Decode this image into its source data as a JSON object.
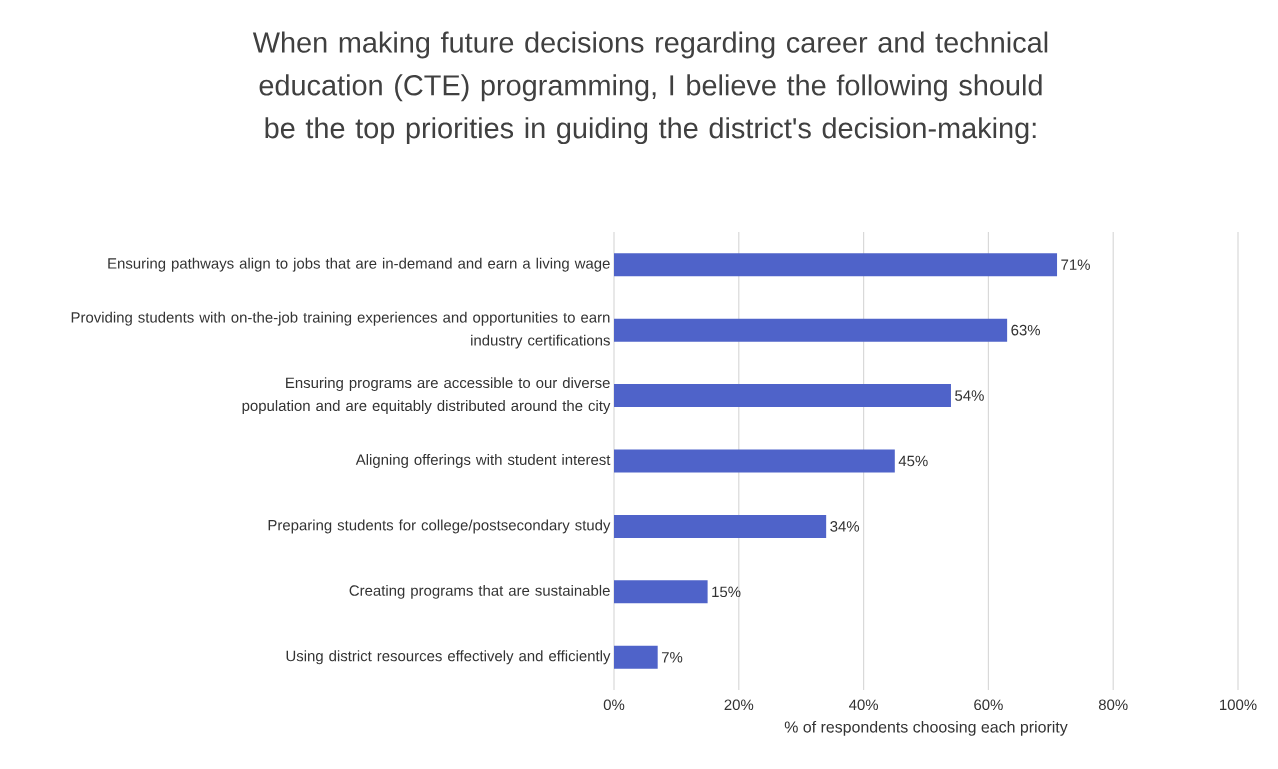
{
  "chart_data": {
    "type": "bar",
    "orientation": "horizontal",
    "title": "When making future decisions regarding career and technical education (CTE) programming, I believe the following should be the top priorities in guiding the district's decision-making:",
    "xlabel": "% of respondents choosing each priority",
    "categories": [
      "Ensuring pathways align to jobs that are in-demand and earn a living wage",
      "Providing students with on-the-job training experiences and opportunities to earn industry certifications",
      "Ensuring programs are accessible to our diverse population and are equitably distributed around the city",
      "Aligning offerings with student interest",
      "Preparing students for college/postsecondary study",
      "Creating programs that are sustainable",
      "Using district resources effectively and efficiently"
    ],
    "values": [
      71,
      63,
      54,
      45,
      34,
      15,
      7
    ],
    "value_labels": [
      "71%",
      "63%",
      "54%",
      "45%",
      "34%",
      "15%",
      "7%"
    ],
    "color": "#4f63c9",
    "xlim": [
      0,
      100
    ],
    "xticks": [
      {
        "value": 0,
        "label": "0%"
      },
      {
        "value": 20,
        "label": "20%"
      },
      {
        "value": 40,
        "label": "40%"
      },
      {
        "value": 60,
        "label": "60%"
      },
      {
        "value": 80,
        "label": "80%"
      },
      {
        "value": 100,
        "label": "100%"
      }
    ],
    "grid": "x"
  }
}
